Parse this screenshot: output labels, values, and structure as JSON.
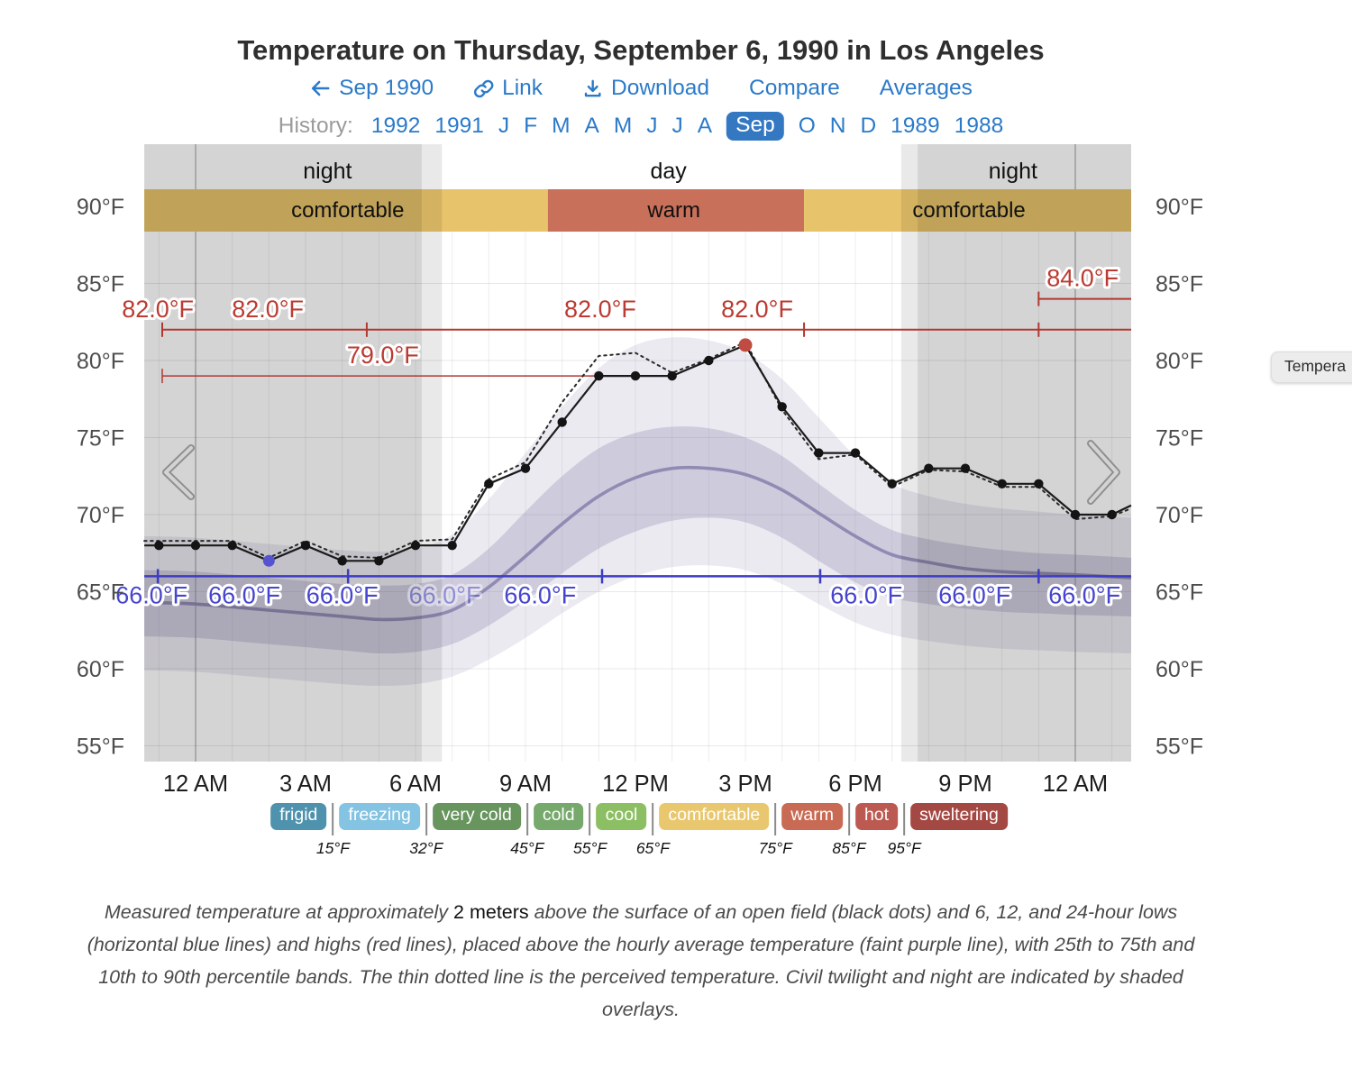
{
  "title": "Temperature on Thursday, September 6, 1990 in Los Angeles",
  "nav": {
    "prev": "Sep 1990",
    "link": "Link",
    "download": "Download",
    "compare": "Compare",
    "averages": "Averages"
  },
  "history": {
    "label": "History:",
    "items": [
      {
        "label": "1992"
      },
      {
        "label": "1991"
      },
      {
        "label": "J"
      },
      {
        "label": "F"
      },
      {
        "label": "M"
      },
      {
        "label": "A"
      },
      {
        "label": "M"
      },
      {
        "label": "J"
      },
      {
        "label": "J"
      },
      {
        "label": "A"
      },
      {
        "label": "Sep",
        "selected": true
      },
      {
        "label": "O"
      },
      {
        "label": "N"
      },
      {
        "label": "D"
      },
      {
        "label": "1989"
      },
      {
        "label": "1988"
      }
    ]
  },
  "tooltip": {
    "text": "Tempera"
  },
  "caption": {
    "pre": "Measured temperature at approximately ",
    "em": "2 meters",
    "post": " above the surface of an open field (black dots) and 6, 12, and 24-hour lows (horizontal blue lines) and highs (red lines), placed above the hourly average temperature (faint purple line), with 25th to 75th and 10th to 90th percentile bands. The thin dotted line is the perceived temperature. Civil twilight and night are indicated by shaded overlays."
  },
  "legend": {
    "categories": [
      {
        "label": "frigid",
        "color": "#4e92ad"
      },
      {
        "label": "freezing",
        "color": "#84c3e2"
      },
      {
        "label": "very cold",
        "color": "#68945e"
      },
      {
        "label": "cold",
        "color": "#76a96b"
      },
      {
        "label": "cool",
        "color": "#8cbf63"
      },
      {
        "label": "comfortable",
        "color": "#e8c76e"
      },
      {
        "label": "warm",
        "color": "#c96b54"
      },
      {
        "label": "hot",
        "color": "#bc5a52"
      },
      {
        "label": "sweltering",
        "color": "#a44843"
      }
    ],
    "thresholds": [
      "15°F",
      "32°F",
      "45°F",
      "55°F",
      "65°F",
      "75°F",
      "85°F",
      "95°F"
    ]
  },
  "chart_data": {
    "type": "line",
    "title": "Temperature on Thursday, September 6, 1990 in Los Angeles",
    "units": "°F",
    "y_axis": {
      "min": 55,
      "max": 90,
      "ticks": [
        "90°F",
        "85°F",
        "80°F",
        "75°F",
        "70°F",
        "65°F",
        "60°F",
        "55°F"
      ],
      "tick_values": [
        90,
        85,
        80,
        75,
        70,
        65,
        60,
        55
      ]
    },
    "x_axis": {
      "ticks": [
        {
          "label": "12 AM",
          "hour": 0
        },
        {
          "label": "3 AM",
          "hour": 3
        },
        {
          "label": "6 AM",
          "hour": 6
        },
        {
          "label": "9 AM",
          "hour": 9
        },
        {
          "label": "12 PM",
          "hour": 12
        },
        {
          "label": "3 PM",
          "hour": 15
        },
        {
          "label": "6 PM",
          "hour": 18
        },
        {
          "label": "9 PM",
          "hour": 21
        },
        {
          "label": "12 AM",
          "hour": 24
        }
      ]
    },
    "plot_range_hours": [
      -1.4,
      25.53
    ],
    "day_night": {
      "overlays": [
        {
          "kind": "night",
          "from": -1.4,
          "to": 6.17
        },
        {
          "kind": "twilight",
          "from": 6.17,
          "to": 6.72
        },
        {
          "kind": "twilight",
          "from": 19.25,
          "to": 19.7
        },
        {
          "kind": "night",
          "from": 19.7,
          "to": 25.53
        }
      ],
      "labels": [
        {
          "text": "night",
          "hour": 3.6
        },
        {
          "text": "day",
          "hour": 12.9
        },
        {
          "text": "night",
          "hour": 22.3
        }
      ]
    },
    "comfort_bands": {
      "bands": [
        {
          "label": "comfortable",
          "from": -1.4,
          "to": 9.61,
          "color": "#e7c46c"
        },
        {
          "label": "warm",
          "from": 9.61,
          "to": 16.6,
          "color": "#c9705a"
        },
        {
          "label": "comfortable",
          "from": 16.6,
          "to": 25.53,
          "color": "#e7c46c"
        }
      ],
      "labels": [
        {
          "text": "comfortable",
          "hour": 4.15
        },
        {
          "text": "warm",
          "hour": 13.05
        },
        {
          "text": "comfortable",
          "hour": 21.1
        }
      ]
    },
    "measured": {
      "first_hour": -1,
      "temps_f": [
        68,
        68,
        68,
        67,
        68,
        67,
        67,
        68,
        68,
        72,
        73,
        76,
        79,
        79,
        79,
        80,
        81,
        77,
        74,
        74,
        72,
        73,
        73,
        72,
        72,
        70,
        70
      ],
      "edge_left": {
        "hour": -1.4,
        "temp": 68
      },
      "edge_right": {
        "hour": 25.53,
        "temp": 70.6
      }
    },
    "min_point": {
      "hour": 2,
      "temp": 67,
      "color": "#5553cf"
    },
    "max_point": {
      "hour": 15,
      "temp": 81,
      "color": "#c04b42"
    },
    "perceived": {
      "hours": [
        -1.4,
        -1,
        0,
        1,
        2,
        3,
        4,
        5,
        6,
        7,
        8,
        9,
        10,
        11,
        12,
        13,
        14,
        15,
        16,
        17,
        18,
        19,
        20,
        21,
        22,
        23,
        24,
        25,
        25.53
      ],
      "temps_f": [
        68.3,
        68.3,
        68.3,
        68.3,
        67.2,
        68.3,
        67.3,
        67.2,
        68.3,
        68.4,
        72.3,
        73.4,
        77.3,
        80.3,
        80.5,
        79.2,
        80.1,
        81.2,
        76.8,
        73.6,
        73.9,
        71.8,
        72.9,
        72.8,
        71.8,
        71.8,
        69.7,
        69.9,
        70.4
      ]
    },
    "historical": {
      "hours": [
        -1.4,
        0,
        2,
        4,
        5,
        6,
        7,
        8,
        9,
        10,
        11,
        12,
        13,
        14,
        15,
        16,
        17,
        18,
        19,
        20,
        21,
        22,
        23,
        24,
        25.53
      ],
      "mean": [
        64.3,
        64.2,
        63.8,
        63.4,
        63.2,
        63.3,
        63.8,
        65.3,
        67.3,
        69.4,
        71.2,
        72.4,
        73.0,
        73.0,
        72.6,
        71.6,
        70.1,
        68.6,
        67.4,
        66.9,
        66.5,
        66.3,
        66.2,
        66.1,
        65.9
      ],
      "p25": [
        62.1,
        62.0,
        61.6,
        61.2,
        61.0,
        61.1,
        61.6,
        62.8,
        64.4,
        66.2,
        67.8,
        68.9,
        69.6,
        69.8,
        69.5,
        68.5,
        67.0,
        65.6,
        64.6,
        64.2,
        63.9,
        63.7,
        63.6,
        63.5,
        63.4
      ],
      "p75": [
        66.4,
        66.3,
        65.9,
        65.5,
        65.4,
        65.5,
        66.1,
        67.8,
        70.2,
        72.5,
        74.3,
        75.3,
        75.7,
        75.6,
        75.0,
        73.8,
        72.0,
        70.3,
        69.0,
        68.4,
        68.0,
        67.7,
        67.5,
        67.4,
        67.2
      ],
      "p10": [
        59.9,
        59.8,
        59.4,
        59.0,
        58.9,
        59.0,
        59.5,
        60.6,
        62.0,
        63.6,
        65.0,
        66.0,
        66.6,
        66.7,
        66.4,
        65.5,
        64.2,
        63.0,
        62.2,
        61.8,
        61.5,
        61.3,
        61.2,
        61.1,
        61.0
      ],
      "p90": [
        68.6,
        68.5,
        68.1,
        67.7,
        67.6,
        67.8,
        68.7,
        71.0,
        74.0,
        77.0,
        79.5,
        81.0,
        81.5,
        81.3,
        80.5,
        78.8,
        76.3,
        73.8,
        72.0,
        71.2,
        70.7,
        70.4,
        70.2,
        70.0,
        69.8
      ],
      "mean_color": "#8b84ae"
    },
    "high_lines": [
      {
        "value": "82.0°F",
        "temp": 82,
        "from": -0.91,
        "to": 25.53,
        "ticks": [
          -0.91,
          4.67,
          16.6,
          23.0
        ],
        "labels": [
          {
            "hour": -1.03
          },
          {
            "hour": 1.97
          },
          {
            "hour": 11.04
          },
          {
            "hour": 15.32
          }
        ],
        "width": 2
      },
      {
        "value": "79.0°F",
        "temp": 79,
        "from": -0.91,
        "to": 11.08,
        "ticks": [
          -0.91
        ],
        "labels": [
          {
            "hour": 5.11
          }
        ],
        "width": 1.5
      },
      {
        "value": "84.0°F",
        "temp": 84,
        "from": 23.0,
        "to": 25.53,
        "ticks": [
          23.0
        ],
        "labels": [
          {
            "hour": 24.2
          }
        ],
        "width": 2
      }
    ],
    "low_lines": [
      {
        "value": "66.0°F",
        "temp": 66,
        "from": -1.4,
        "to": 25.53,
        "ticks": [
          -1.03,
          4.16,
          11.09,
          17.04,
          23.0
        ],
        "labels": [
          {
            "hour": -1.2
          },
          {
            "hour": 1.33
          },
          {
            "hour": 4.0
          },
          {
            "hour": 6.8,
            "faint": true
          },
          {
            "hour": 9.4
          },
          {
            "hour": 18.3
          },
          {
            "hour": 21.25
          },
          {
            "hour": 24.25
          }
        ],
        "width": 2.5
      }
    ],
    "colors": {
      "high_line": "#b2382f",
      "high_label": "#bb3b32",
      "low_line": "#3c3cc4",
      "low_label": "#4645cd",
      "night_overlay": "rgba(0,0,0,0.17)",
      "twilight_overlay": "rgba(0,0,0,0.085)"
    }
  }
}
